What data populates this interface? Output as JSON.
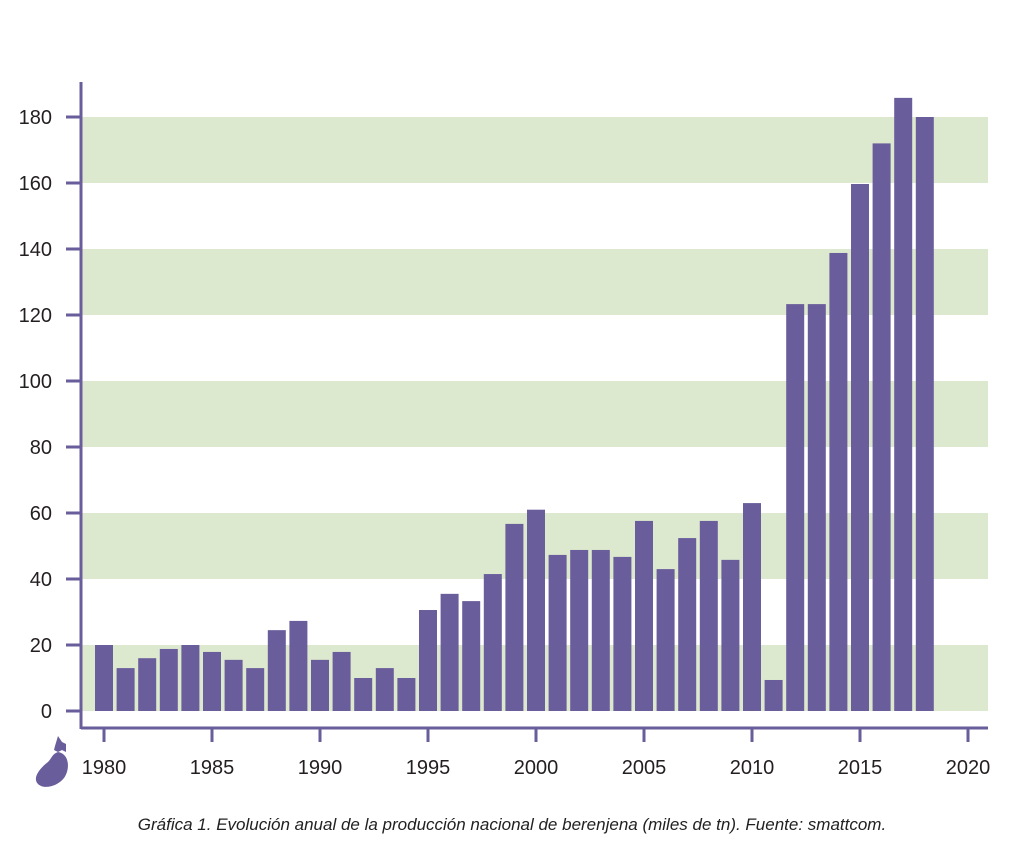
{
  "chart_data": {
    "type": "bar",
    "title": "",
    "xlabel": "",
    "ylabel": "",
    "caption": "Gráfica 1. Evolución anual de la producción nacional de berenjena (miles de tn). Fuente: smattcom.",
    "ylim": [
      0,
      180
    ],
    "xlim": [
      1979,
      2021
    ],
    "yticks": [
      0,
      20,
      40,
      60,
      80,
      100,
      120,
      140,
      160,
      180
    ],
    "xticks": [
      1980,
      1985,
      1990,
      1995,
      2000,
      2005,
      2010,
      2015,
      2020
    ],
    "x": [
      1980,
      1981,
      1982,
      1983,
      1984,
      1985,
      1986,
      1987,
      1988,
      1989,
      1990,
      1991,
      1992,
      1993,
      1994,
      1995,
      1996,
      1997,
      1998,
      1999,
      2000,
      2001,
      2002,
      2003,
      2004,
      2005,
      2006,
      2007,
      2008,
      2009,
      2010,
      2011,
      2012,
      2013,
      2014,
      2015,
      2016,
      2017,
      2018
    ],
    "values": [
      20,
      13,
      16,
      18.8,
      20,
      17.9,
      15.5,
      13,
      24.5,
      27.3,
      15.5,
      17.9,
      10,
      13,
      10,
      30.6,
      35.5,
      33.3,
      41.5,
      56.7,
      61,
      47.3,
      48.8,
      48.8,
      46.7,
      57.6,
      43,
      52.4,
      57.6,
      45.8,
      63,
      9.4,
      123.3,
      123.3,
      138.8,
      159.7,
      172,
      185.8,
      180
    ],
    "grid": "alternating horizontal bands",
    "colors": {
      "bar": "#6a5d9b",
      "band": "#dde9cf",
      "axis": "#6a5d9b",
      "text": "#231f20"
    }
  }
}
